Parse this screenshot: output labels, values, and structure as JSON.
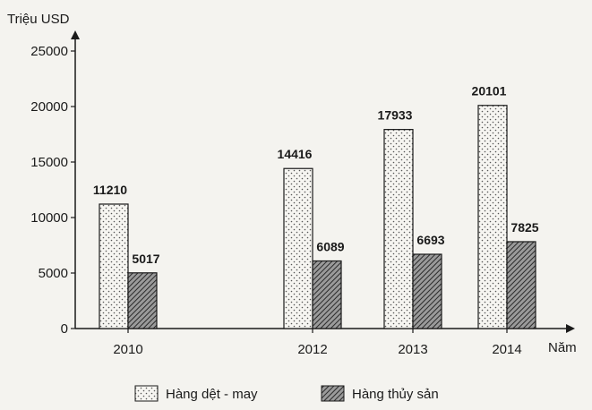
{
  "chart_data": {
    "type": "bar",
    "ylabel": "Triệu USD",
    "xlabel": "Năm",
    "ylim": [
      0,
      25000
    ],
    "yticks": [
      0,
      5000,
      10000,
      15000,
      20000,
      25000
    ],
    "categories": [
      "2010",
      "2012",
      "2013",
      "2014"
    ],
    "series": [
      {
        "name": "Hàng dệt - may",
        "values": [
          11210,
          14416,
          17933,
          20101
        ],
        "pattern": "dotted"
      },
      {
        "name": "Hàng thủy sản",
        "values": [
          5017,
          6089,
          6693,
          7825
        ],
        "pattern": "hatched"
      }
    ],
    "legend_position": "bottom",
    "grid": false
  },
  "colors": {
    "background": "#f4f3ef",
    "axis": "#1a1a1a",
    "bar_stroke": "#1a1a1a"
  }
}
